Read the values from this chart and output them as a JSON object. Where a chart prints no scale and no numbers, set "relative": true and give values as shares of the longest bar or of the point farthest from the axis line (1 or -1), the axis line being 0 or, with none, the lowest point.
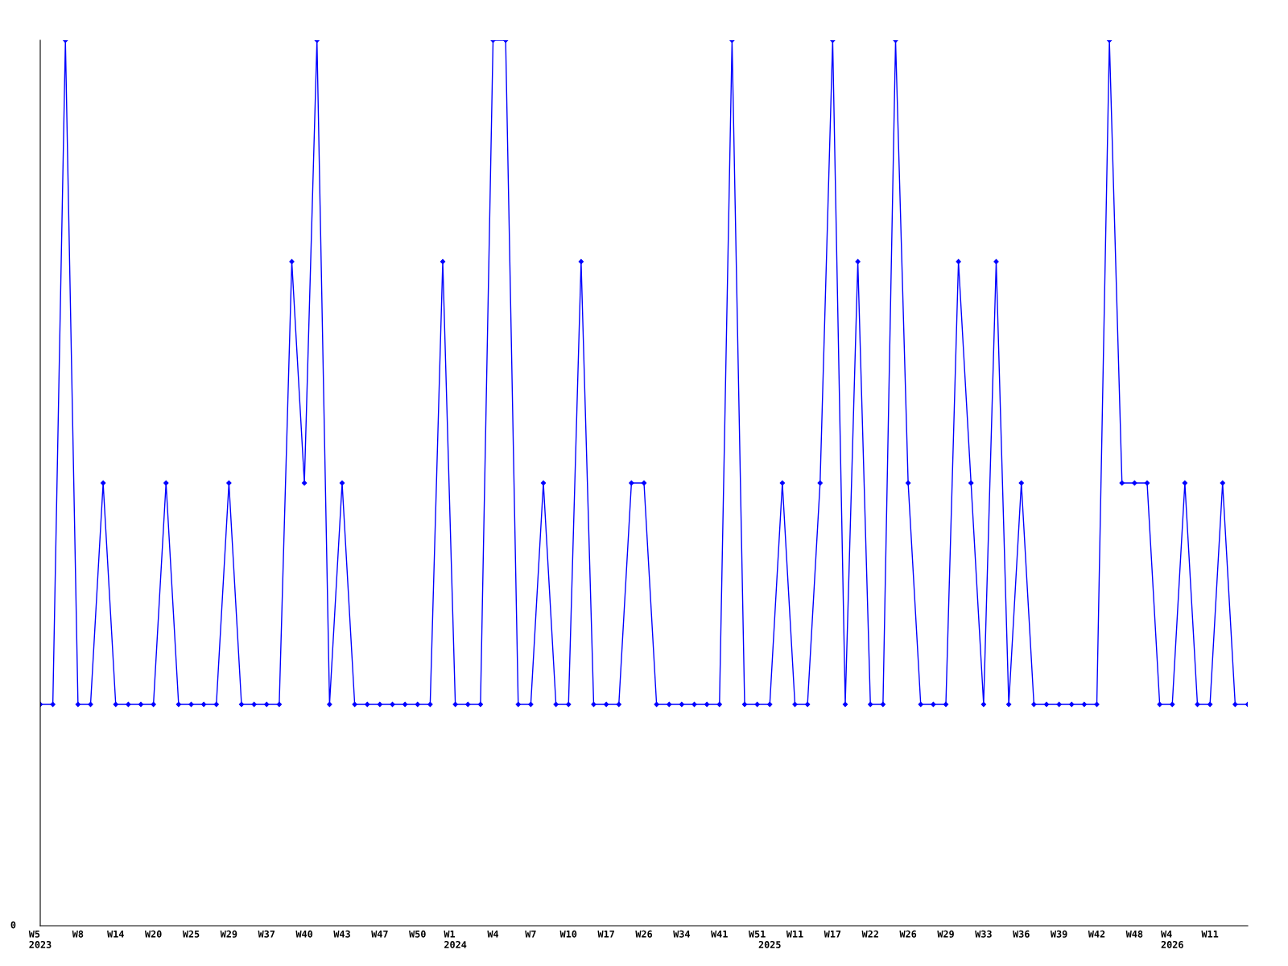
{
  "chart_data": {
    "type": "line",
    "relative": true,
    "color": "#0000ff",
    "marker": "diamond",
    "grid": false,
    "legend": false,
    "categories": [
      "W5\n2023",
      null,
      null,
      "W8",
      null,
      null,
      "W14",
      null,
      null,
      "W20",
      null,
      null,
      "W25",
      null,
      null,
      "W29",
      null,
      null,
      "W37",
      null,
      null,
      "W40",
      null,
      null,
      "W43",
      null,
      null,
      "W47",
      null,
      null,
      "W50",
      null,
      null,
      "W1\n2024",
      null,
      null,
      "W4",
      null,
      null,
      "W7",
      null,
      null,
      "W10",
      null,
      null,
      "W17",
      null,
      null,
      "W26",
      null,
      null,
      "W34",
      null,
      null,
      "W41",
      null,
      null,
      "W51",
      "\n2025",
      null,
      "W11",
      null,
      null,
      "W17",
      null,
      null,
      "W22",
      null,
      null,
      "W26",
      null,
      null,
      "W29",
      null,
      null,
      "W33",
      null,
      null,
      "W36",
      null,
      null,
      "W39",
      null,
      null,
      "W42",
      null,
      null,
      "W48",
      null,
      null,
      "W4\n2026",
      null,
      null,
      "W11",
      null,
      null,
      null
    ],
    "values": [
      0.25,
      0.25,
      1,
      0.25,
      0.25,
      0.5,
      0.25,
      0.25,
      0.25,
      0.25,
      0.5,
      0.25,
      0.25,
      0.25,
      0.25,
      0.5,
      0.25,
      0.25,
      0.25,
      0.25,
      0.75,
      0.5,
      1,
      0.25,
      0.5,
      0.25,
      0.25,
      0.25,
      0.25,
      0.25,
      0.25,
      0.25,
      0.75,
      0.25,
      0.25,
      0.25,
      1,
      1,
      0.25,
      0.25,
      0.5,
      0.25,
      0.25,
      0.75,
      0.25,
      0.25,
      0.25,
      0.5,
      0.5,
      0.25,
      0.25,
      0.25,
      0.25,
      0.25,
      0.25,
      1,
      0.25,
      0.25,
      0.25,
      0.5,
      0.25,
      0.25,
      0.5,
      1,
      0.25,
      0.75,
      0.25,
      0.25,
      1,
      0.5,
      0.25,
      0.25,
      0.25,
      0.75,
      0.5,
      0.25,
      0.75,
      0.25,
      0.5,
      0.25,
      0.25,
      0.25,
      0.25,
      0.25,
      0.25,
      1,
      0.5,
      0.5,
      0.5,
      0.25,
      0.25,
      0.5,
      0.25,
      0.25,
      0.5,
      0.25,
      0.25
    ],
    "annotations": [
      "0"
    ]
  }
}
